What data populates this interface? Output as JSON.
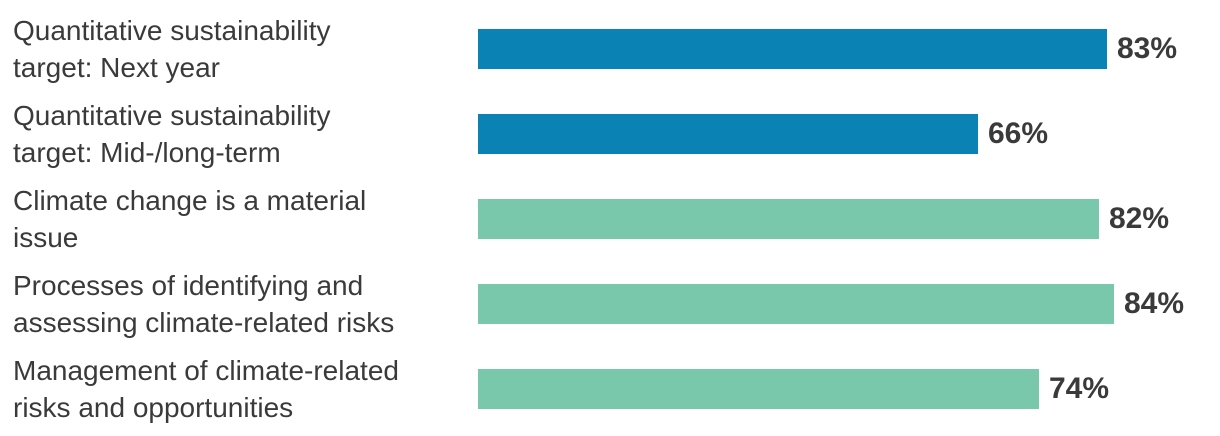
{
  "chart_data": {
    "type": "bar",
    "orientation": "horizontal",
    "title": "",
    "xlabel": "",
    "ylabel": "",
    "xlim": [
      0,
      100
    ],
    "grid": false,
    "legend": null,
    "categories": [
      "Quantitative sustainability target: Next year",
      "Quantitative sustainability target: Mid-/long-term",
      "Climate change is a material issue",
      "Processes of identifying and assessing climate-related risks",
      "Management of climate-related risks and opportunities"
    ],
    "values": [
      83,
      66,
      82,
      84,
      74
    ],
    "value_labels": [
      "83%",
      "66%",
      "82%",
      "84%",
      "74%"
    ],
    "colors": {
      "blue_bar": "#0A82B3",
      "green_bar": "#79C8AC",
      "text": "#3A3A3A"
    },
    "bars": [
      {
        "label_lines": [
          "Quantitative sustainability",
          "target: Next year"
        ],
        "value": 83,
        "value_label": "83%",
        "color": "#0A82B3"
      },
      {
        "label_lines": [
          "Quantitative sustainability",
          "target: Mid-/long-term"
        ],
        "value": 66,
        "value_label": "66%",
        "color": "#0A82B3"
      },
      {
        "label_lines": [
          "Climate change is a material",
          "issue"
        ],
        "value": 82,
        "value_label": "82%",
        "color": "#79C8AC"
      },
      {
        "label_lines": [
          "Processes of identifying and",
          "assessing climate-related risks"
        ],
        "value": 84,
        "value_label": "84%",
        "color": "#79C8AC"
      },
      {
        "label_lines": [
          "Management of climate-related",
          "risks and opportunities"
        ],
        "value": 74,
        "value_label": "74%",
        "color": "#79C8AC"
      }
    ]
  }
}
